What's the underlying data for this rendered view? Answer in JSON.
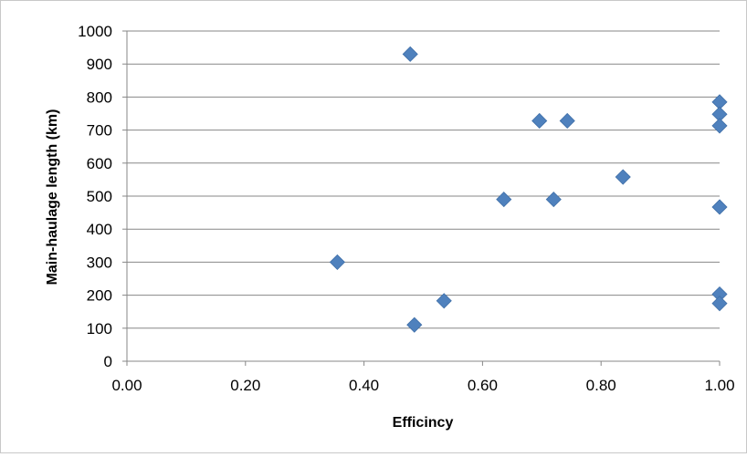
{
  "chart_data": {
    "type": "scatter",
    "xlabel": "Efficincy",
    "ylabel": "Main-haulage length (km)",
    "xlim": [
      0.0,
      1.0
    ],
    "ylim": [
      0,
      1000
    ],
    "x_ticks": [
      "0.00",
      "0.20",
      "0.40",
      "0.60",
      "0.80",
      "1.00"
    ],
    "y_ticks": [
      "0",
      "100",
      "200",
      "300",
      "400",
      "500",
      "600",
      "700",
      "800",
      "900",
      "1000"
    ],
    "grid": "horizontal",
    "legend": "none",
    "marker": "diamond",
    "marker_color": "#4f81bd",
    "points": [
      {
        "x": 0.478,
        "y": 930
      },
      {
        "x": 0.355,
        "y": 300
      },
      {
        "x": 0.485,
        "y": 110
      },
      {
        "x": 0.535,
        "y": 183
      },
      {
        "x": 0.636,
        "y": 490
      },
      {
        "x": 0.696,
        "y": 728
      },
      {
        "x": 0.72,
        "y": 490
      },
      {
        "x": 0.743,
        "y": 728
      },
      {
        "x": 0.837,
        "y": 558
      },
      {
        "x": 1.0,
        "y": 785
      },
      {
        "x": 1.0,
        "y": 748
      },
      {
        "x": 1.0,
        "y": 713
      },
      {
        "x": 1.0,
        "y": 467
      },
      {
        "x": 1.0,
        "y": 203
      },
      {
        "x": 1.0,
        "y": 175
      }
    ]
  }
}
